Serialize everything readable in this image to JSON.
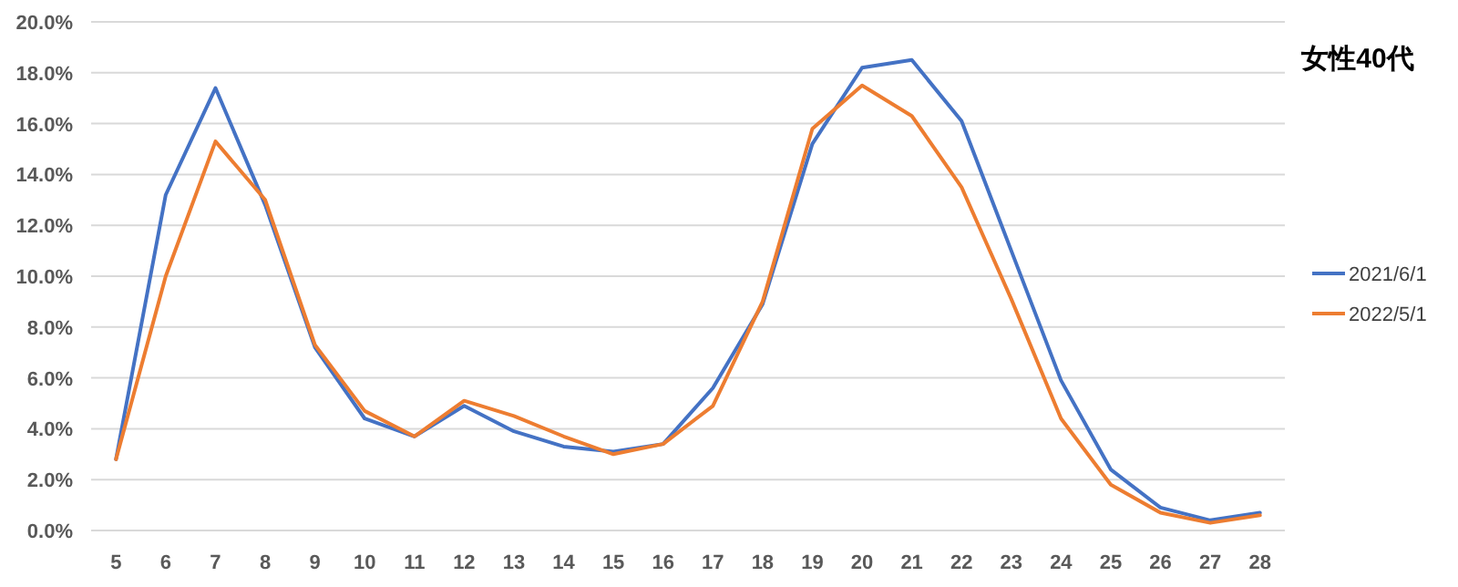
{
  "chart_data": {
    "type": "line",
    "title": "女性40代",
    "categories": [
      "5",
      "6",
      "7",
      "8",
      "9",
      "10",
      "11",
      "12",
      "13",
      "14",
      "15",
      "16",
      "17",
      "18",
      "19",
      "20",
      "21",
      "22",
      "23",
      "24",
      "25",
      "26",
      "27",
      "28"
    ],
    "series": [
      {
        "name": "2021/6/1",
        "color": "#4472c4",
        "values": [
          2.8,
          13.2,
          17.4,
          12.8,
          7.2,
          4.4,
          3.7,
          4.9,
          3.9,
          3.3,
          3.1,
          3.4,
          5.6,
          8.9,
          15.2,
          18.2,
          18.5,
          16.1,
          11.0,
          5.9,
          2.4,
          0.9,
          0.4,
          0.7
        ]
      },
      {
        "name": "2022/5/1",
        "color": "#ed7d31",
        "values": [
          2.8,
          10.0,
          15.3,
          13.0,
          7.3,
          4.7,
          3.7,
          5.1,
          4.5,
          3.7,
          3.0,
          3.4,
          4.9,
          9.0,
          15.8,
          17.5,
          16.3,
          13.5,
          9.1,
          4.4,
          1.8,
          0.7,
          0.3,
          0.6
        ]
      }
    ],
    "ylim": [
      0,
      20
    ],
    "yticks": [
      {
        "value": 0,
        "label": "0.0%"
      },
      {
        "value": 2,
        "label": "2.0%"
      },
      {
        "value": 4,
        "label": "4.0%"
      },
      {
        "value": 6,
        "label": "6.0%"
      },
      {
        "value": 8,
        "label": "8.0%"
      },
      {
        "value": 10,
        "label": "10.0%"
      },
      {
        "value": 12,
        "label": "12.0%"
      },
      {
        "value": 14,
        "label": "14.0%"
      },
      {
        "value": 16,
        "label": "16.0%"
      },
      {
        "value": 18,
        "label": "18.0%"
      },
      {
        "value": 20,
        "label": "20.0%"
      }
    ],
    "grid": "y",
    "legend": "right",
    "marker": "none",
    "line_style": "solid"
  }
}
